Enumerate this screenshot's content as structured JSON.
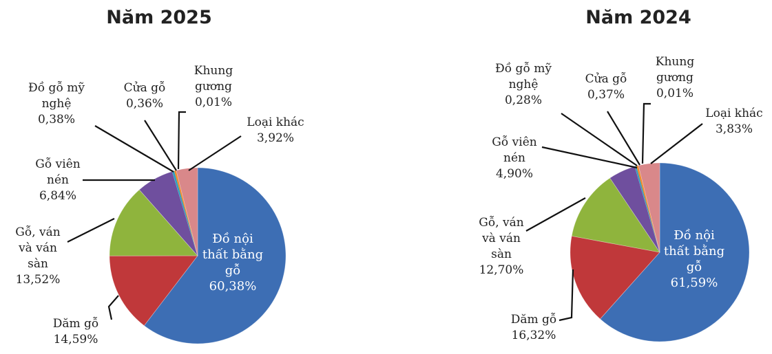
{
  "chart_data": [
    {
      "type": "pie",
      "title": "Năm 2025",
      "slices": [
        {
          "label": "Đồ nội thất bằng gỗ",
          "lines": [
            "Đồ nội",
            "thất bằng",
            "gỗ"
          ],
          "value_text": "60,38%",
          "value": 60.38,
          "color": "#3d6eb4"
        },
        {
          "label": "Dăm gỗ",
          "lines": [
            "Dăm gỗ"
          ],
          "value_text": "14,59%",
          "value": 14.59,
          "color": "#c0383a"
        },
        {
          "label": "Gỗ, ván và ván sàn",
          "lines": [
            "Gỗ, ván",
            "và ván",
            "sàn"
          ],
          "value_text": "13,52%",
          "value": 13.52,
          "color": "#8fb43d"
        },
        {
          "label": "Gỗ viên nén",
          "lines": [
            "Gỗ viên",
            "nén"
          ],
          "value_text": "6,84%",
          "value": 6.84,
          "color": "#6f4f9e"
        },
        {
          "label": "Đồ gỗ mỹ nghệ",
          "lines": [
            "Đồ gỗ mỹ",
            "nghệ"
          ],
          "value_text": "0,38%",
          "value": 0.38,
          "color": "#2fa0bd"
        },
        {
          "label": "Cửa gỗ",
          "lines": [
            "Cửa gỗ"
          ],
          "value_text": "0,36%",
          "value": 0.36,
          "color": "#f08a2c"
        },
        {
          "label": "Khung gương",
          "lines": [
            "Khung",
            "gương"
          ],
          "value_text": "0,01%",
          "value": 0.01,
          "color": "#8ea7d3"
        },
        {
          "label": "Loại khác",
          "lines": [
            "Loại khác"
          ],
          "value_text": "3,92%",
          "value": 3.92,
          "color": "#d9888a"
        }
      ]
    },
    {
      "type": "pie",
      "title": "Năm 2024",
      "slices": [
        {
          "label": "Đồ nội thất bằng gỗ",
          "lines": [
            "Đồ nội",
            "thất bằng",
            "gỗ"
          ],
          "value_text": "61,59%",
          "value": 61.59,
          "color": "#3d6eb4"
        },
        {
          "label": "Dăm gỗ",
          "lines": [
            "Dăm gỗ"
          ],
          "value_text": "16,32%",
          "value": 16.32,
          "color": "#c0383a"
        },
        {
          "label": "Gỗ, ván và ván sàn",
          "lines": [
            "Gỗ, ván",
            "và ván",
            "sàn"
          ],
          "value_text": "12,70%",
          "value": 12.7,
          "color": "#8fb43d"
        },
        {
          "label": "Gỗ viên nén",
          "lines": [
            "Gỗ viên",
            "nén"
          ],
          "value_text": "4,90%",
          "value": 4.9,
          "color": "#6f4f9e"
        },
        {
          "label": "Đồ gỗ mỹ nghệ",
          "lines": [
            "Đồ gỗ mỹ",
            "nghệ"
          ],
          "value_text": "0,28%",
          "value": 0.28,
          "color": "#2fa0bd"
        },
        {
          "label": "Cửa gỗ",
          "lines": [
            "Cửa gỗ"
          ],
          "value_text": "0,37%",
          "value": 0.37,
          "color": "#f08a2c"
        },
        {
          "label": "Khung gương",
          "lines": [
            "Khung",
            "gương"
          ],
          "value_text": "0,01%",
          "value": 0.01,
          "color": "#8ea7d3"
        },
        {
          "label": "Loại khác",
          "lines": [
            "Loại khác"
          ],
          "value_text": "3,83%",
          "value": 3.83,
          "color": "#d9888a"
        }
      ]
    }
  ]
}
